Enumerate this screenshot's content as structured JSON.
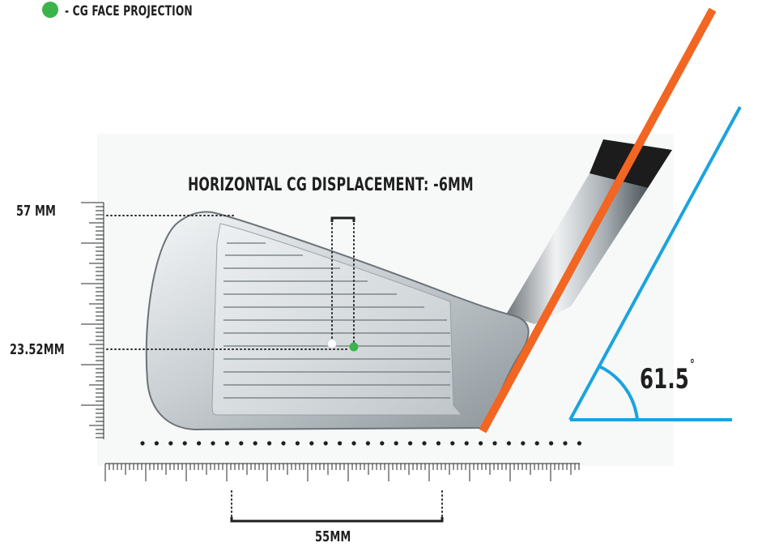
{
  "legend": {
    "label": "- CG FACE PROJECTION",
    "color": "#3cb44b",
    "icon": "filled-circle-icon"
  },
  "title": "HORIZONTAL CG DISPLACEMENT: -6MM",
  "labels": {
    "top_height": "57 MM",
    "cg_height": "23.52MM",
    "face_width": "55MM",
    "lie_angle": "61.5",
    "degree_symbol": "°"
  },
  "colors": {
    "shaft_line": "#f26522",
    "angle_lines": "#1aa3e0",
    "cg_point": "#3cb44b",
    "center_point": "#ffffff",
    "text": "#1f1f1f",
    "ruler": "#2a2a2a"
  }
}
